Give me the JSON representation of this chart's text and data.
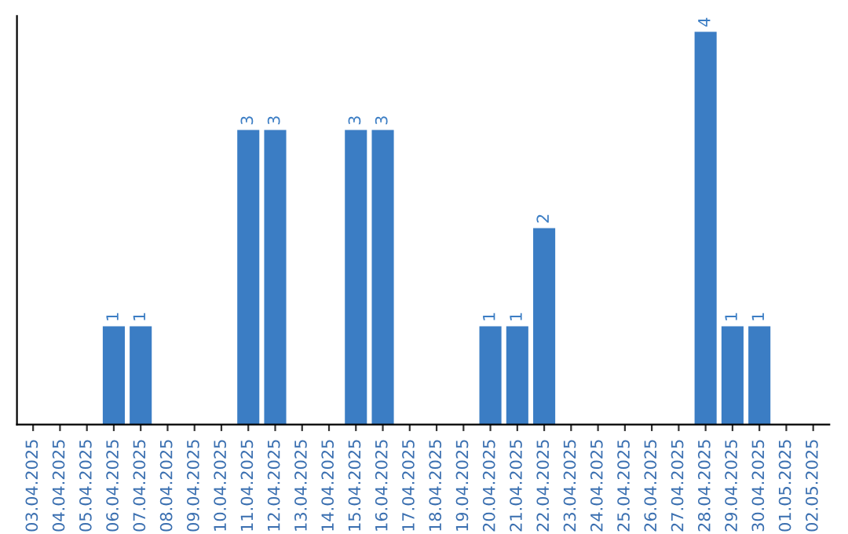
{
  "chart_data": {
    "type": "bar",
    "categories": [
      "03.04.2025",
      "04.04.2025",
      "05.04.2025",
      "06.04.2025",
      "07.04.2025",
      "08.04.2025",
      "09.04.2025",
      "10.04.2025",
      "11.04.2025",
      "12.04.2025",
      "13.04.2025",
      "14.04.2025",
      "15.04.2025",
      "16.04.2025",
      "17.04.2025",
      "18.04.2025",
      "19.04.2025",
      "20.04.2025",
      "21.04.2025",
      "22.04.2025",
      "23.04.2025",
      "24.04.2025",
      "25.04.2025",
      "26.04.2025",
      "27.04.2025",
      "28.04.2025",
      "29.04.2025",
      "30.04.2025",
      "01.05.2025",
      "02.05.2025"
    ],
    "values": [
      0,
      0,
      0,
      1,
      1,
      0,
      0,
      0,
      3,
      3,
      0,
      0,
      3,
      3,
      0,
      0,
      0,
      1,
      1,
      2,
      0,
      0,
      0,
      0,
      0,
      4,
      1,
      1,
      0,
      0
    ],
    "color": "#3b7dc4",
    "value_labels": [
      null,
      null,
      null,
      "1",
      "1",
      null,
      null,
      null,
      "3",
      "3",
      null,
      null,
      "3",
      "3",
      null,
      null,
      null,
      "1",
      "1",
      "2",
      null,
      null,
      null,
      null,
      null,
      "4",
      "1",
      "1",
      null,
      null
    ],
    "tick_labels": "x",
    "grid": false,
    "legend": false
  }
}
